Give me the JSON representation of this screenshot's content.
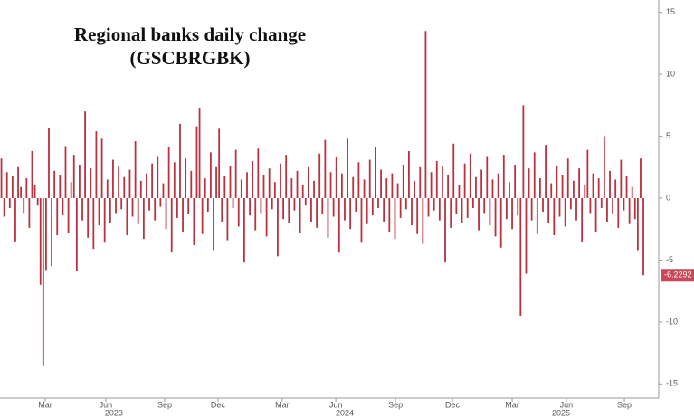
{
  "chart_data": {
    "type": "bar",
    "title": "Regional banks daily change",
    "subtitle": "(GSCBRGBK)",
    "color": "#b8323f",
    "ylim": [
      -16,
      16
    ],
    "yticks": [
      15,
      10,
      5,
      0,
      -5,
      -10,
      -15
    ],
    "xlim": [
      0,
      236
    ],
    "xticks": [
      {
        "value": 16.2,
        "label": "Mar"
      },
      {
        "value": 37.9,
        "label": "Jun"
      },
      {
        "value": 59,
        "label": "Sep"
      },
      {
        "value": 78.1,
        "label": "Dec"
      },
      {
        "value": 101.1,
        "label": "Mar"
      },
      {
        "value": 120.3,
        "label": "Jun"
      },
      {
        "value": 141.7,
        "label": "Sep"
      },
      {
        "value": 162.1,
        "label": "Dec"
      },
      {
        "value": 183.5,
        "label": "Mar"
      },
      {
        "value": 202.9,
        "label": "Jun"
      },
      {
        "value": 223.7,
        "label": "Sep"
      }
    ],
    "years": [
      {
        "value": 40.8,
        "label": "2023"
      },
      {
        "value": 123.5,
        "label": "2024"
      },
      {
        "value": 201,
        "label": "2025"
      }
    ],
    "values": [
      3.2,
      -1.5,
      2.1,
      -0.8,
      1.8,
      -3.5,
      2.5,
      0.9,
      -1.2,
      1.6,
      -2.4,
      3.8,
      1.1,
      -0.6,
      -7.0,
      -13.5,
      -5.8,
      5.7,
      -5.5,
      2.2,
      -3.0,
      1.9,
      -1.4,
      4.2,
      -2.8,
      1.3,
      3.5,
      -5.9,
      2.7,
      -1.8,
      7.0,
      -3.2,
      2.4,
      -4.1,
      5.4,
      -2.2,
      4.8,
      -3.6,
      1.5,
      -2.0,
      3.1,
      -1.2,
      2.6,
      -0.9,
      1.7,
      -3.0,
      2.3,
      -1.5,
      4.6,
      -2.1,
      1.4,
      -3.3,
      2.0,
      -1.0,
      2.8,
      -1.8,
      3.4,
      -0.7,
      1.2,
      -2.5,
      4.1,
      -4.4,
      2.9,
      -1.6,
      6.0,
      -2.7,
      3.2,
      -1.3,
      2.2,
      -3.8,
      5.8,
      7.3,
      -2.9,
      1.6,
      -1.1,
      3.7,
      -4.2,
      2.5,
      5.6,
      -1.9,
      1.8,
      -3.4,
      2.6,
      -0.8,
      3.9,
      -2.3,
      1.5,
      -5.2,
      2.1,
      -1.4,
      3.0,
      -2.6,
      4.0,
      -1.2,
      1.9,
      -3.1,
      2.4,
      -0.9,
      1.3,
      -4.7,
      2.8,
      -1.7,
      3.5,
      -2.0,
      1.6,
      -1.0,
      2.2,
      -2.8,
      1.1,
      -0.6,
      2.5,
      -1.9,
      1.4,
      -2.4,
      3.6,
      -1.3,
      4.7,
      -3.2,
      2.1,
      -1.5,
      3.3,
      -4.4,
      2.0,
      -1.8,
      4.8,
      -2.5,
      1.7,
      -1.1,
      2.9,
      -3.6,
      1.5,
      -2.1,
      3.1,
      -1.4,
      4.1,
      -0.8,
      2.3,
      -1.9,
      1.6,
      -2.7,
      2.0,
      -3.3,
      1.2,
      -1.6,
      2.7,
      -0.9,
      3.8,
      -2.2,
      1.4,
      -2.9,
      2.5,
      -3.7,
      13.5,
      -1.5,
      2.1,
      -1.0,
      3.0,
      -1.8,
      2.6,
      -5.2,
      1.9,
      -2.4,
      4.4,
      -1.3,
      1.1,
      -2.0,
      2.8,
      -1.6,
      3.6,
      -0.8,
      1.7,
      -2.6,
      2.3,
      -1.2,
      3.4,
      -2.2,
      1.5,
      -3.1,
      2.0,
      -4.0,
      3.5,
      -1.7,
      1.3,
      -2.5,
      2.7,
      -1.4,
      -9.5,
      7.5,
      -6.1,
      2.4,
      -1.8,
      3.7,
      -2.9,
      1.6,
      -1.1,
      4.3,
      -2.0,
      1.2,
      -3.0,
      2.6,
      -1.5,
      1.9,
      -2.3,
      3.2,
      -0.9,
      1.4,
      -1.8,
      2.4,
      -3.5,
      1.1,
      3.9,
      -1.2,
      2.0,
      -2.7,
      1.6,
      -0.8,
      5.0,
      -1.9,
      2.2,
      -1.3,
      1.5,
      -2.4,
      3.1,
      -1.0,
      1.8,
      -2.1,
      0.9,
      -1.7,
      -4.2,
      3.2,
      -6.2292
    ]
  }
}
